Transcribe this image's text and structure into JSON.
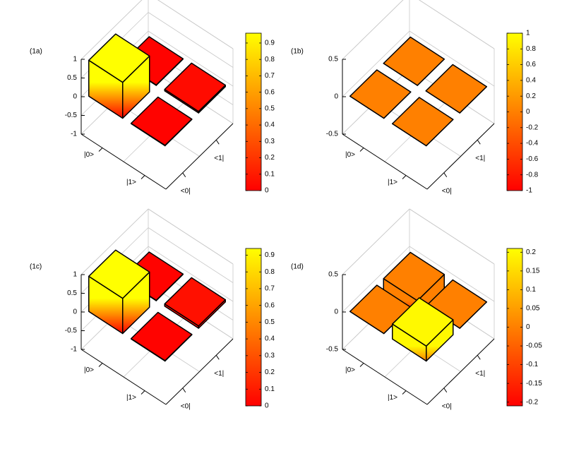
{
  "chart_data": [
    {
      "type": "bar3d",
      "label": "(1a)",
      "rows": [
        "|0>",
        "|1>"
      ],
      "cols": [
        "<0|",
        "<1|"
      ],
      "values": [
        [
          0.96,
          0.01
        ],
        [
          0.01,
          0.04
        ]
      ],
      "zlim": [
        -1,
        1
      ],
      "zticks": [
        -1,
        -0.5,
        0,
        0.5,
        1
      ],
      "clim": [
        0,
        0.96
      ],
      "cticks": [
        0,
        0.1,
        0.2,
        0.3,
        0.4,
        0.5,
        0.6,
        0.7,
        0.8,
        0.9
      ],
      "colormap": [
        "#ff0000",
        "#ffff00"
      ]
    },
    {
      "type": "bar3d",
      "label": "(1b)",
      "rows": [
        "|0>",
        "|1>"
      ],
      "cols": [
        "<0|",
        "<1|"
      ],
      "values": [
        [
          0,
          0
        ],
        [
          0,
          0
        ]
      ],
      "zlim": [
        -0.5,
        0.5
      ],
      "zticks": [
        -0.5,
        0,
        0.5
      ],
      "clim": [
        -1,
        1
      ],
      "cticks": [
        -1,
        -0.8,
        -0.6,
        -0.4,
        -0.2,
        0,
        0.2,
        0.4,
        0.6,
        0.8,
        1
      ],
      "colormap": [
        "#ff0000",
        "#ffff00"
      ]
    },
    {
      "type": "bar3d",
      "label": "(1c)",
      "rows": [
        "|0>",
        "|1>"
      ],
      "cols": [
        "<0|",
        "<1|"
      ],
      "values": [
        [
          0.94,
          0.01
        ],
        [
          0.01,
          0.06
        ]
      ],
      "zlim": [
        -1,
        1
      ],
      "zticks": [
        -1,
        -0.5,
        0,
        0.5,
        1
      ],
      "clim": [
        0,
        0.94
      ],
      "cticks": [
        0,
        0.1,
        0.2,
        0.3,
        0.4,
        0.5,
        0.6,
        0.7,
        0.8,
        0.9
      ],
      "colormap": [
        "#ff0000",
        "#ffff00"
      ]
    },
    {
      "type": "bar3d",
      "label": "(1d)",
      "rows": [
        "|0>",
        "|1>"
      ],
      "cols": [
        "<0|",
        "<1|"
      ],
      "values": [
        [
          0,
          -0.2
        ],
        [
          0.2,
          0
        ]
      ],
      "zlim": [
        -0.5,
        0.5
      ],
      "zticks": [
        -0.5,
        0,
        0.5
      ],
      "clim": [
        -0.21,
        0.21
      ],
      "cticks": [
        -0.2,
        -0.15,
        -0.1,
        -0.05,
        0,
        0.05,
        0.1,
        0.15,
        0.2
      ],
      "colormap": [
        "#ff0000",
        "#ffff00"
      ]
    }
  ]
}
